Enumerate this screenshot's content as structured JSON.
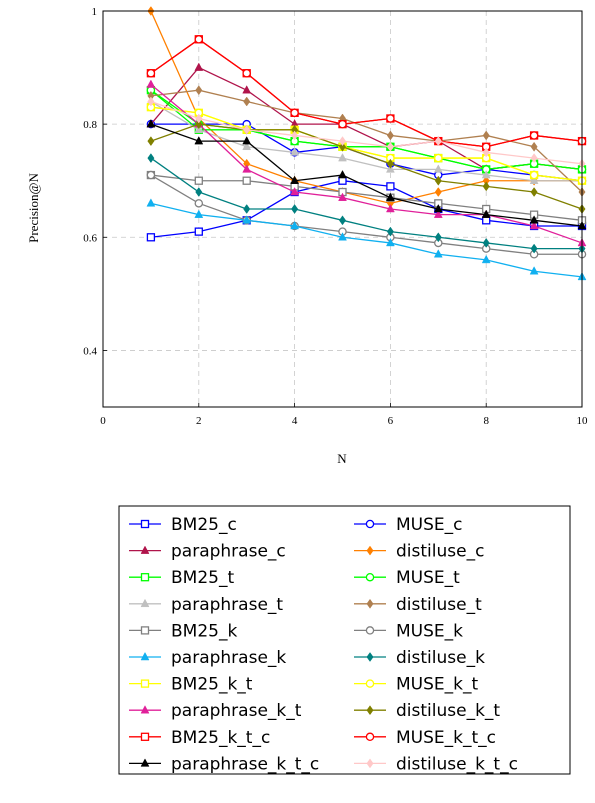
{
  "chart_data": {
    "type": "line",
    "xlabel": "N",
    "ylabel": "Precision@N",
    "xlim": [
      0,
      10
    ],
    "ylim": [
      0.3,
      1.0
    ],
    "x_ticks": [
      "0",
      "2",
      "4",
      "6",
      "8",
      "10"
    ],
    "y_ticks": [
      "0.4",
      "0.6",
      "0.8",
      "1"
    ],
    "grid": true,
    "legend_placement": "below",
    "x": [
      1,
      2,
      3,
      4,
      5,
      6,
      7,
      8,
      9,
      10
    ],
    "series": [
      {
        "name": "BM25_c",
        "color": "#0000ff",
        "marker": "square",
        "values": [
          0.6,
          0.61,
          0.63,
          0.68,
          0.7,
          0.69,
          0.65,
          0.63,
          0.62,
          0.62
        ]
      },
      {
        "name": "MUSE_c",
        "color": "#0000ff",
        "marker": "circle",
        "values": [
          0.8,
          0.8,
          0.8,
          0.75,
          0.76,
          0.73,
          0.71,
          0.72,
          0.71,
          0.7
        ]
      },
      {
        "name": "paraphrase_c",
        "color": "#b0144b",
        "marker": "triangle",
        "values": [
          0.8,
          0.9,
          0.86,
          0.8,
          0.8,
          0.76,
          0.77,
          0.72,
          0.73,
          0.72
        ]
      },
      {
        "name": "distiluse_c",
        "color": "#ff8000",
        "marker": "diamond",
        "values": [
          1.0,
          0.81,
          0.73,
          0.7,
          0.68,
          0.66,
          0.68,
          0.7,
          0.7,
          0.7
        ]
      },
      {
        "name": "BM25_t",
        "color": "#00ff00",
        "marker": "square",
        "values": [
          0.86,
          0.79,
          0.79,
          0.77,
          0.76,
          0.76,
          0.74,
          0.72,
          0.73,
          0.72
        ]
      },
      {
        "name": "MUSE_t",
        "color": "#00ff00",
        "marker": "circle",
        "values": [
          0.86,
          0.8,
          0.79,
          0.77,
          0.76,
          0.76,
          0.74,
          0.72,
          0.73,
          0.72
        ]
      },
      {
        "name": "paraphrase_t",
        "color": "#c0c0c0",
        "marker": "triangle",
        "values": [
          0.84,
          0.79,
          0.76,
          0.75,
          0.74,
          0.72,
          0.72,
          0.71,
          0.7,
          0.7
        ]
      },
      {
        "name": "distiluse_t",
        "color": "#b08050",
        "marker": "diamond",
        "values": [
          0.85,
          0.86,
          0.84,
          0.82,
          0.81,
          0.78,
          0.77,
          0.78,
          0.76,
          0.68
        ]
      },
      {
        "name": "BM25_k",
        "color": "#808080",
        "marker": "square",
        "values": [
          0.71,
          0.7,
          0.7,
          0.69,
          0.68,
          0.67,
          0.66,
          0.65,
          0.64,
          0.63
        ]
      },
      {
        "name": "MUSE_k",
        "color": "#808080",
        "marker": "circle",
        "values": [
          0.71,
          0.66,
          0.63,
          0.62,
          0.61,
          0.6,
          0.59,
          0.58,
          0.57,
          0.57
        ]
      },
      {
        "name": "paraphrase_k",
        "color": "#10b0f0",
        "marker": "triangle",
        "values": [
          0.66,
          0.64,
          0.63,
          0.62,
          0.6,
          0.59,
          0.57,
          0.56,
          0.54,
          0.53
        ]
      },
      {
        "name": "distiluse_k",
        "color": "#008080",
        "marker": "diamond",
        "values": [
          0.74,
          0.68,
          0.65,
          0.65,
          0.63,
          0.61,
          0.6,
          0.59,
          0.58,
          0.58
        ]
      },
      {
        "name": "BM25_k_t",
        "color": "#ffff00",
        "marker": "square",
        "values": [
          0.83,
          0.82,
          0.79,
          0.79,
          0.76,
          0.74,
          0.74,
          0.74,
          0.71,
          0.7
        ]
      },
      {
        "name": "MUSE_k_t",
        "color": "#ffff00",
        "marker": "circle",
        "values": [
          0.83,
          0.82,
          0.79,
          0.79,
          0.76,
          0.74,
          0.74,
          0.74,
          0.71,
          0.7
        ]
      },
      {
        "name": "paraphrase_k_t",
        "color": "#e0209a",
        "marker": "triangle",
        "values": [
          0.87,
          0.8,
          0.72,
          0.68,
          0.67,
          0.65,
          0.64,
          0.64,
          0.62,
          0.59
        ]
      },
      {
        "name": "distiluse_k_t",
        "color": "#808000",
        "marker": "diamond",
        "values": [
          0.77,
          0.8,
          0.79,
          0.79,
          0.76,
          0.73,
          0.7,
          0.69,
          0.68,
          0.65
        ]
      },
      {
        "name": "BM25_k_t_c",
        "color": "#ff0000",
        "marker": "square",
        "values": [
          0.89,
          0.95,
          0.89,
          0.82,
          0.8,
          0.81,
          0.77,
          0.76,
          0.78,
          0.77
        ]
      },
      {
        "name": "MUSE_k_t_c",
        "color": "#ff0000",
        "marker": "circle",
        "values": [
          0.89,
          0.95,
          0.89,
          0.82,
          0.8,
          0.81,
          0.77,
          0.76,
          0.78,
          0.77
        ]
      },
      {
        "name": "paraphrase_k_t_c",
        "color": "#000000",
        "marker": "triangle",
        "values": [
          0.8,
          0.77,
          0.77,
          0.7,
          0.71,
          0.67,
          0.65,
          0.64,
          0.63,
          0.62
        ]
      },
      {
        "name": "distiluse_k_t_c",
        "color": "#ffc8c8",
        "marker": "diamond",
        "values": [
          0.84,
          0.81,
          0.79,
          0.78,
          0.77,
          0.76,
          0.77,
          0.75,
          0.74,
          0.73
        ]
      }
    ]
  }
}
